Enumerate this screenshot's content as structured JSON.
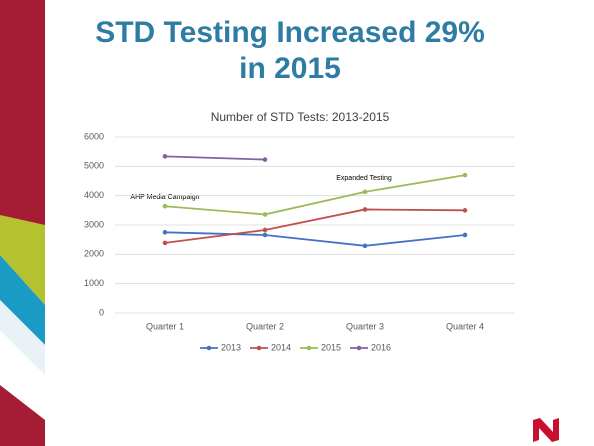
{
  "slide_title_line1": "STD Testing Increased 29%",
  "slide_title_line2": "in 2015",
  "chart_data": {
    "type": "line",
    "title": "Number of STD Tests: 2013-2015",
    "categories": [
      "Quarter 1",
      "Quarter 2",
      "Quarter 3",
      "Quarter 4"
    ],
    "series": [
      {
        "name": "2013",
        "color": "#4472c4",
        "values": [
          2750,
          2660,
          2290,
          2660
        ]
      },
      {
        "name": "2014",
        "color": "#c0504d",
        "values": [
          2390,
          2830,
          3530,
          3500
        ]
      },
      {
        "name": "2015",
        "color": "#9bbb59",
        "values": [
          3640,
          3360,
          4130,
          4700
        ]
      },
      {
        "name": "2016",
        "color": "#8064a2",
        "values": [
          5340,
          5230,
          null,
          null
        ]
      }
    ],
    "ylim": [
      0,
      6000
    ],
    "yticks": [
      0,
      1000,
      2000,
      3000,
      4000,
      5000,
      6000
    ],
    "grid": true,
    "legend": "bottom",
    "annotations": [
      "AHP Media Campaign",
      "Expanded Testing"
    ]
  }
}
